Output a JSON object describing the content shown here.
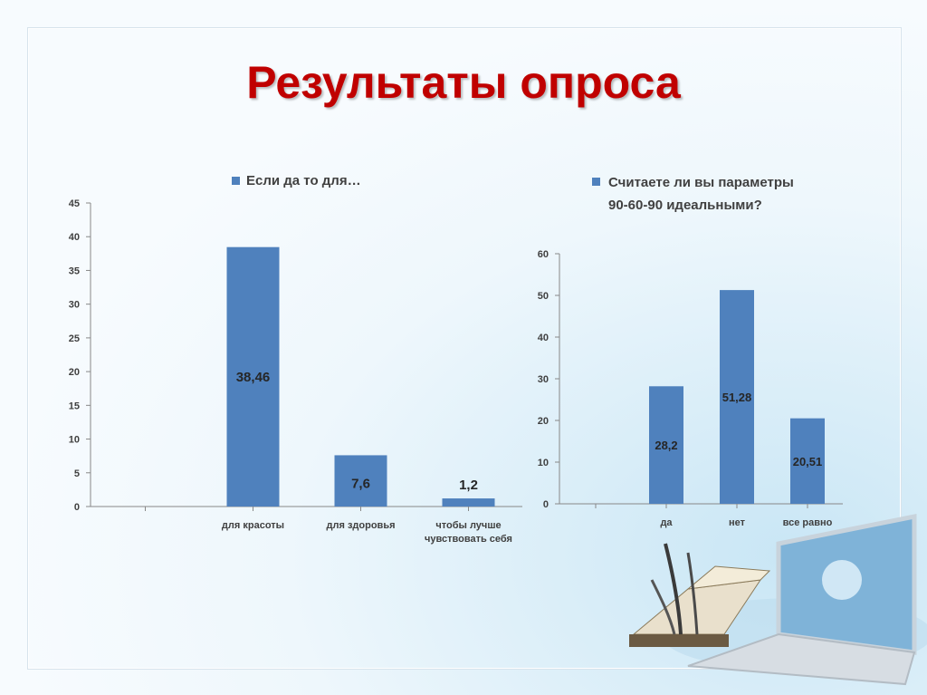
{
  "slide": {
    "title": "Результаты опроса"
  },
  "colors": {
    "bar": "#4f81bd",
    "title": "#c00000",
    "axis": "#888888"
  },
  "chart_data": [
    {
      "type": "bar",
      "legend": [
        "Если да то для…"
      ],
      "categories": [
        "для красоты",
        "для здоровья",
        "чтобы лучше чувствовать себя"
      ],
      "category_lines": [
        [
          "для красоты"
        ],
        [
          "для здоровья"
        ],
        [
          "чтобы лучше",
          "чувствовать себя"
        ]
      ],
      "values": [
        38.46,
        7.6,
        1.2
      ],
      "data_labels": [
        "38,46",
        "7,6",
        "1,2"
      ],
      "ylim": [
        0,
        45
      ],
      "yticks": [
        0,
        5,
        10,
        15,
        20,
        25,
        30,
        35,
        40,
        45
      ],
      "legend_position": "top",
      "grid": false
    },
    {
      "type": "bar",
      "legend": [
        "Считаете ли вы параметры 90-60-90 идеальными?"
      ],
      "legend_lines": [
        "Считаете ли вы параметры",
        "90-60-90 идеальными?"
      ],
      "categories": [
        "да",
        "нет",
        "все равно"
      ],
      "category_lines": [
        [
          "да"
        ],
        [
          "нет"
        ],
        [
          "все равно"
        ]
      ],
      "values": [
        28.2,
        51.28,
        20.51
      ],
      "data_labels": [
        "28,2",
        "51,28",
        "20,51"
      ],
      "ylim": [
        0,
        60
      ],
      "yticks": [
        0,
        10,
        20,
        30,
        40,
        50,
        60
      ],
      "legend_position": "top",
      "grid": false
    }
  ]
}
